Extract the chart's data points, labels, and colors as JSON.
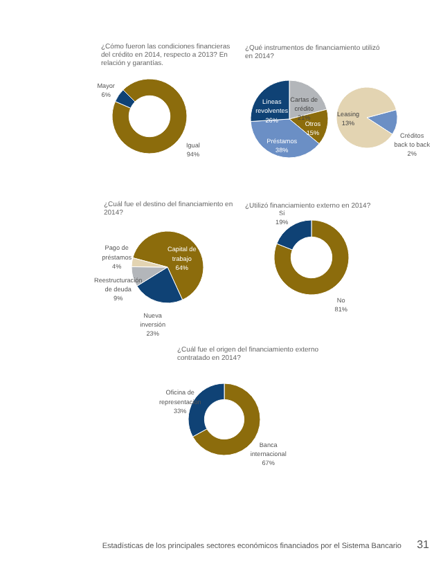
{
  "chart_data": [
    {
      "type": "donut",
      "title": "¿Cómo fueron las condiciones financieras del crédito en 2014, respecto a 2013? En relación y garantías.",
      "categories": [
        "Igual",
        "Mayor"
      ],
      "values": [
        94,
        6
      ],
      "colors": [
        "#8c6c0c",
        "#0f4275"
      ],
      "value_labels": [
        "94%",
        "6%"
      ]
    },
    {
      "type": "pie",
      "title": "¿Qué instrumentos de financiamiento utilizó en 2014?",
      "categories": [
        "Cartas de crédito",
        "Otros",
        "Préstamos",
        "Líneas revolventes"
      ],
      "values": [
        21,
        15,
        38,
        26
      ],
      "colors": [
        "#b3b6ba",
        "#8c6c0c",
        "#6b8fc5",
        "#0f4275"
      ],
      "value_labels": [
        "21%",
        "15%",
        "38%",
        "26%"
      ]
    },
    {
      "type": "pie",
      "categories": [
        "Créditos back to back",
        "Leasing"
      ],
      "values": [
        2,
        13
      ],
      "colors": [
        "#6b8fc5",
        "#e3d4b2"
      ],
      "value_labels": [
        "2%",
        "13%"
      ]
    },
    {
      "type": "pie",
      "title": "¿Cuál fue el destino del financiamiento en 2014?",
      "categories": [
        "Capital de trabajo",
        "Nueva inversión",
        "Reestructuración de deuda",
        "Pago de préstamos"
      ],
      "values": [
        64,
        23,
        9,
        4
      ],
      "colors": [
        "#8c6c0c",
        "#0f4275",
        "#b3b6ba",
        "#e3d4b2"
      ],
      "value_labels": [
        "64%",
        "23%",
        "9%",
        "4%"
      ]
    },
    {
      "type": "donut",
      "title": "¿Utilizó financiamiento externo en 2014?",
      "categories": [
        "No",
        "Sí"
      ],
      "values": [
        81,
        19
      ],
      "colors": [
        "#8c6c0c",
        "#0f4275"
      ],
      "value_labels": [
        "81%",
        "19%"
      ]
    },
    {
      "type": "donut",
      "title": "¿Cuál fue el origen del financiamiento externo contratado en 2014?",
      "categories": [
        "Banca internacional",
        "Oficina de representación"
      ],
      "values": [
        67,
        33
      ],
      "colors": [
        "#8c6c0c",
        "#0f4275"
      ],
      "value_labels": [
        "67%",
        "33%"
      ],
      "annotations": [
        "Estadísticas de los principales sectores económicos financiados por el Sistema Bancario",
        "31"
      ]
    }
  ]
}
